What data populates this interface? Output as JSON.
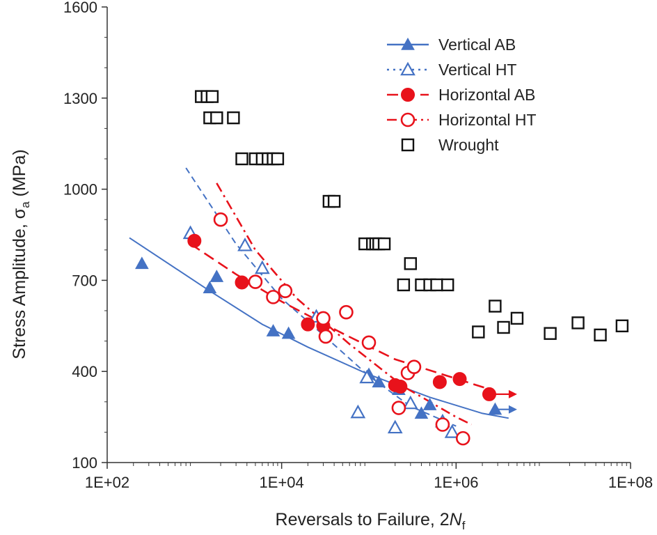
{
  "chart_data": {
    "type": "scatter",
    "xscale": "log",
    "xlim": [
      100,
      100000000
    ],
    "ylim": [
      100,
      1600
    ],
    "xticks": [
      "1E+02",
      "1E+04",
      "1E+06",
      "1E+08"
    ],
    "yticks": [
      "100",
      "400",
      "700",
      "1000",
      "1300",
      "1600"
    ],
    "xlabel_prefix": "Reversals to Failure, 2",
    "xlabel_var": "N",
    "xlabel_sub": "f",
    "ylabel_prefix": "Stress Amplitude, ",
    "ylabel_var": "σ",
    "ylabel_sub": "a",
    "ylabel_suffix": " (MPa)",
    "legend_position": "top-right",
    "series": [
      {
        "name": "Vertical AB",
        "color": "#4472C4",
        "marker": "triangle-filled",
        "line": "solid",
        "points": [
          [
            250,
            755
          ],
          [
            1500,
            675
          ],
          [
            1800,
            712
          ],
          [
            8000,
            533
          ],
          [
            12000,
            525
          ],
          [
            100000,
            390
          ],
          [
            130000,
            365
          ],
          [
            220000,
            340
          ],
          [
            400000,
            262
          ],
          [
            500000,
            290
          ],
          [
            2800000,
            275
          ]
        ],
        "fit": [
          [
            180,
            840
          ],
          [
            1500,
            665
          ],
          [
            6000,
            555
          ],
          [
            20000,
            480
          ],
          [
            100000,
            390
          ],
          [
            500000,
            315
          ],
          [
            2000000,
            262
          ],
          [
            4000000,
            246
          ]
        ],
        "runout": [
          [
            2800000,
            275
          ],
          [
            5000000,
            275
          ]
        ]
      },
      {
        "name": "Vertical HT",
        "color": "#4472C4",
        "marker": "triangle-open",
        "line": "dashed",
        "points": [
          [
            900,
            855
          ],
          [
            3800,
            815
          ],
          [
            6000,
            740
          ],
          [
            25000,
            580
          ],
          [
            75000,
            265
          ],
          [
            95000,
            380
          ],
          [
            200000,
            215
          ],
          [
            300000,
            295
          ],
          [
            700000,
            235
          ],
          [
            900000,
            200
          ]
        ],
        "fit": [
          [
            800,
            1070
          ],
          [
            3000,
            820
          ],
          [
            10000,
            640
          ],
          [
            30000,
            520
          ],
          [
            100000,
            385
          ],
          [
            300000,
            285
          ],
          [
            1000000,
            220
          ]
        ]
      },
      {
        "name": "Horizontal AB",
        "color": "#E8121B",
        "marker": "circle-filled",
        "line": "long-dash",
        "points": [
          [
            1000,
            830
          ],
          [
            3500,
            693
          ],
          [
            5000,
            695
          ],
          [
            20000,
            555
          ],
          [
            30000,
            550
          ],
          [
            200000,
            355
          ],
          [
            230000,
            350
          ],
          [
            650000,
            365
          ],
          [
            1100000,
            375
          ],
          [
            2400000,
            325
          ]
        ],
        "fit": [
          [
            900,
            820
          ],
          [
            3000,
            720
          ],
          [
            10000,
            630
          ],
          [
            50000,
            525
          ],
          [
            200000,
            440
          ],
          [
            800000,
            385
          ],
          [
            2500000,
            340
          ]
        ],
        "runout": [
          [
            2400000,
            325
          ],
          [
            5000000,
            325
          ]
        ]
      },
      {
        "name": "Horizontal HT",
        "color": "#E8121B",
        "marker": "circle-open",
        "line": "dash-dot",
        "points": [
          [
            2000,
            900
          ],
          [
            5000,
            695
          ],
          [
            8000,
            645
          ],
          [
            11000,
            665
          ],
          [
            30000,
            575
          ],
          [
            32000,
            515
          ],
          [
            55000,
            595
          ],
          [
            100000,
            495
          ],
          [
            220000,
            280
          ],
          [
            280000,
            395
          ],
          [
            330000,
            415
          ],
          [
            700000,
            225
          ],
          [
            1200000,
            180
          ]
        ],
        "fit": [
          [
            1800,
            1020
          ],
          [
            5000,
            800
          ],
          [
            15000,
            640
          ],
          [
            60000,
            490
          ],
          [
            250000,
            350
          ],
          [
            1000000,
            250
          ],
          [
            1500000,
            225
          ]
        ]
      },
      {
        "name": "Wrought",
        "color": "#111111",
        "marker": "square-open",
        "line": "none",
        "points": [
          [
            1200,
            1305
          ],
          [
            1400,
            1305
          ],
          [
            1600,
            1305
          ],
          [
            1500,
            1235
          ],
          [
            1800,
            1235
          ],
          [
            2800,
            1235
          ],
          [
            3500,
            1100
          ],
          [
            5000,
            1100
          ],
          [
            6000,
            1100
          ],
          [
            7000,
            1100
          ],
          [
            8000,
            1100
          ],
          [
            9000,
            1100
          ],
          [
            35000,
            960
          ],
          [
            40000,
            960
          ],
          [
            90000,
            820
          ],
          [
            110000,
            820
          ],
          [
            120000,
            820
          ],
          [
            130000,
            820
          ],
          [
            150000,
            820
          ],
          [
            250000,
            685
          ],
          [
            300000,
            755
          ],
          [
            400000,
            685
          ],
          [
            500000,
            685
          ],
          [
            600000,
            685
          ],
          [
            800000,
            685
          ],
          [
            1800000,
            530
          ],
          [
            2800000,
            615
          ],
          [
            3500000,
            545
          ],
          [
            5000000,
            575
          ],
          [
            12000000,
            525
          ],
          [
            25000000,
            560
          ],
          [
            45000000,
            520
          ],
          [
            80000000,
            550
          ]
        ]
      }
    ]
  }
}
